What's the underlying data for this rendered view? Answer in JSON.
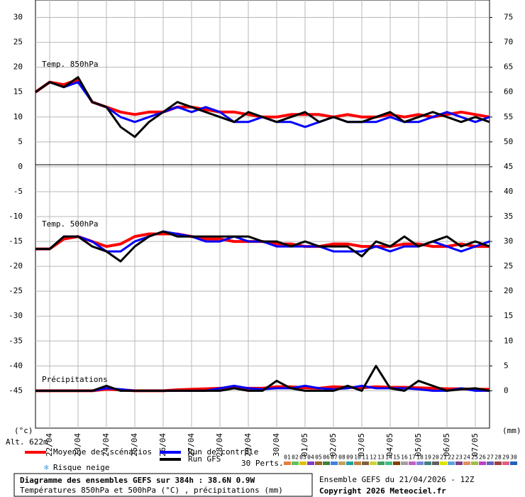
{
  "chart_data": {
    "type": "line",
    "title": "Diagramme des ensembles GEFS sur 384h : 38.6N 0.9W",
    "subtitle": "Températures 850hPa et 500hPa (°C) , précipitations (mm)",
    "run_info": "Ensemble GEFS du 21/04/2026 - 12Z",
    "copyright": "Copyright 2026 Meteociel.fr",
    "y_label": "(°c)",
    "y2_label": "(mm)",
    "altitude": "Alt. 622m",
    "annotations": [
      "Temp. 850hPa",
      "Temp. 500hPa",
      "Précipitations"
    ],
    "snow_label": "Risque neige",
    "grid": true,
    "xlim": [
      0,
      384
    ],
    "xticks": [
      {
        "value": 12,
        "label": "22/04"
      },
      {
        "value": 36,
        "label": "23/04"
      },
      {
        "value": 60,
        "label": "24/04"
      },
      {
        "value": 84,
        "label": "25/04"
      },
      {
        "value": 108,
        "label": "26/04"
      },
      {
        "value": 132,
        "label": "27/04"
      },
      {
        "value": 156,
        "label": "28/04"
      },
      {
        "value": 180,
        "label": "29/04"
      },
      {
        "value": 204,
        "label": "30/04"
      },
      {
        "value": 228,
        "label": "01/05"
      },
      {
        "value": 252,
        "label": "02/05"
      },
      {
        "value": 276,
        "label": "03/05"
      },
      {
        "value": 300,
        "label": "04/05"
      },
      {
        "value": 324,
        "label": "05/05"
      },
      {
        "value": 348,
        "label": "06/05"
      },
      {
        "value": 372,
        "label": "07/05"
      }
    ],
    "ylim": [
      -52.5,
      33.5
    ],
    "yticks": [
      30,
      25,
      20,
      15,
      10,
      5,
      0,
      -5,
      -10,
      -15,
      -20,
      -25,
      -30,
      -35,
      -40,
      -45
    ],
    "y2lim": [
      -7.5,
      78.5
    ],
    "y2ticks": [
      75,
      70,
      65,
      60,
      55,
      50,
      45,
      40,
      35,
      30,
      25,
      20,
      15,
      10,
      5,
      0
    ],
    "x": [
      0,
      12,
      24,
      36,
      48,
      60,
      72,
      84,
      96,
      108,
      120,
      132,
      144,
      156,
      168,
      180,
      192,
      204,
      216,
      228,
      240,
      252,
      264,
      276,
      288,
      300,
      312,
      324,
      336,
      348,
      360,
      372,
      384
    ],
    "series": [
      {
        "name": "Moyenne des scénarios",
        "color": "#ff0000",
        "axis": "y",
        "values": [
          15,
          17,
          16.5,
          17.5,
          13,
          12,
          11,
          10.5,
          11,
          11,
          12,
          12,
          11.5,
          11,
          11,
          10.5,
          10,
          10,
          10.5,
          10.5,
          10.5,
          10,
          10.5,
          10,
          10,
          10.5,
          10,
          10.5,
          10,
          10.5,
          11,
          10.5,
          10
        ]
      },
      {
        "name": "Run de contrôle",
        "color": "#0000ff",
        "axis": "y",
        "values": [
          15,
          17,
          16,
          17,
          13,
          12,
          10,
          9,
          10,
          11,
          12,
          11,
          12,
          11,
          9,
          9,
          10,
          9,
          9,
          8,
          9,
          10,
          9,
          9,
          9,
          10,
          9,
          9,
          10,
          11,
          10,
          9,
          10
        ]
      },
      {
        "name": "Run GFS",
        "color": "#000000",
        "axis": "y",
        "values": [
          15,
          17,
          16,
          18,
          13,
          12,
          8,
          6,
          9,
          11,
          13,
          12,
          11,
          10,
          9,
          11,
          10,
          9,
          10,
          11,
          9,
          10,
          9,
          9,
          10,
          11,
          9,
          10,
          11,
          10,
          9,
          10,
          9
        ]
      },
      {
        "name": "Moyenne des scénarios",
        "color": "#ff0000",
        "axis": "y",
        "values": [
          -16.5,
          -16.5,
          -14.5,
          -14,
          -15,
          -16,
          -15.5,
          -14,
          -13.5,
          -13.5,
          -13.5,
          -14,
          -14.5,
          -14.5,
          -15,
          -15,
          -15,
          -15.5,
          -15.5,
          -16,
          -16,
          -15.5,
          -15.5,
          -16,
          -16,
          -16,
          -15.5,
          -15.5,
          -16,
          -16,
          -15.5,
          -16,
          -16
        ]
      },
      {
        "name": "Run de contrôle",
        "color": "#0000ff",
        "axis": "y",
        "values": [
          -16.5,
          -16.5,
          -14,
          -14,
          -15,
          -17,
          -17,
          -15,
          -14,
          -13,
          -13.5,
          -14,
          -15,
          -15,
          -14,
          -15,
          -15,
          -16,
          -16,
          -16,
          -16,
          -17,
          -17,
          -17,
          -16,
          -17,
          -16,
          -16,
          -15,
          -16,
          -17,
          -16,
          -15
        ]
      },
      {
        "name": "Run GFS",
        "color": "#000000",
        "axis": "y",
        "values": [
          -16.5,
          -16.5,
          -14,
          -14,
          -16,
          -17,
          -19,
          -16,
          -14,
          -13,
          -14,
          -14,
          -14,
          -14,
          -14,
          -14,
          -15,
          -15,
          -16,
          -15,
          -16,
          -16,
          -16,
          -18,
          -15,
          -16,
          -14,
          -16,
          -15,
          -14,
          -16,
          -15,
          -16
        ]
      },
      {
        "name": "Moyenne des scénarios",
        "color": "#ff0000",
        "axis": "y2",
        "values": [
          0,
          0,
          0,
          0,
          0,
          0.3,
          0.2,
          0,
          0,
          0,
          0.2,
          0.3,
          0.4,
          0.5,
          0.6,
          0.5,
          0.5,
          0.8,
          0.8,
          0.6,
          0.5,
          0.8,
          0.7,
          0.6,
          0.8,
          0.7,
          0.7,
          0.6,
          0.5,
          0.4,
          0.4,
          0.3,
          0.3
        ]
      },
      {
        "name": "Run de contrôle",
        "color": "#0000ff",
        "axis": "y2",
        "values": [
          0,
          0,
          0,
          0,
          0,
          0.5,
          0.3,
          0,
          0,
          0,
          0,
          0,
          0,
          0.5,
          1,
          0.5,
          0.3,
          0.5,
          0.5,
          1,
          0.5,
          0.3,
          0.5,
          1,
          0.5,
          0.5,
          0.5,
          0.3,
          0,
          0,
          0.5,
          0,
          0
        ]
      },
      {
        "name": "Run GFS",
        "color": "#000000",
        "axis": "y2",
        "values": [
          0,
          0,
          0,
          0,
          0,
          1,
          0,
          0,
          0,
          0,
          0,
          0,
          0,
          0,
          0.5,
          0,
          0,
          2,
          0.5,
          0,
          0,
          0,
          1,
          0,
          5,
          0.5,
          0,
          2,
          1,
          0,
          0.3,
          0.5,
          0
        ]
      }
    ],
    "perturbations": {
      "label": "30 Perts.",
      "names": [
        "01",
        "02",
        "03",
        "04",
        "05",
        "06",
        "07",
        "08",
        "09",
        "10",
        "11",
        "12",
        "13",
        "14",
        "15",
        "16",
        "17",
        "18",
        "19",
        "20",
        "21",
        "22",
        "23",
        "24",
        "25",
        "26",
        "27",
        "28",
        "29",
        "30"
      ],
      "colors": [
        "#e08040",
        "#60c060",
        "#e0c000",
        "#8040c0",
        "#a06020",
        "#408040",
        "#4080e0",
        "#c0a060",
        "#20a0a0",
        "#c08040",
        "#806040",
        "#d0d040",
        "#40a060",
        "#40c080",
        "#804000",
        "#a0a0a0",
        "#c060c0",
        "#8080e0",
        "#408080",
        "#606060",
        "#e0e000",
        "#60a0e0",
        "#804080",
        "#e09060",
        "#a0c040",
        "#c040c0",
        "#6060c0",
        "#a04040",
        "#e06080",
        "#2060c0"
      ]
    }
  }
}
